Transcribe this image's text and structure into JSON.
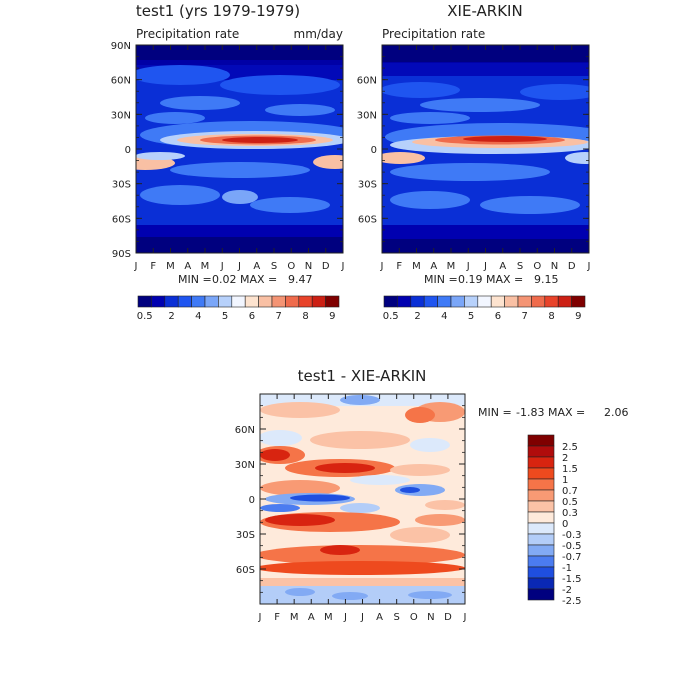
{
  "chart_data": [
    {
      "type": "heatmap",
      "title": "test1 (yrs 1979-1979)",
      "subtitle_left": "Precipitation rate",
      "subtitle_right": "mm/day",
      "x_ticks": [
        "J",
        "F",
        "M",
        "A",
        "M",
        "J",
        "J",
        "A",
        "S",
        "O",
        "N",
        "D",
        "J"
      ],
      "y_ticks": [
        "90N",
        "60N",
        "30N",
        "0",
        "30S",
        "60S",
        "90S"
      ],
      "stats": {
        "min_label": "MIN =",
        "min": "0.02",
        "max_label": "MAX =",
        "max": "9.47"
      },
      "colorbar_labels": [
        "0.5",
        "2",
        "4",
        "5",
        "6",
        "7",
        "8",
        "9"
      ]
    },
    {
      "type": "heatmap",
      "title": "XIE-ARKIN",
      "subtitle_left": "Precipitation rate",
      "x_ticks": [
        "J",
        "F",
        "M",
        "A",
        "M",
        "J",
        "J",
        "A",
        "S",
        "O",
        "N",
        "D",
        "J"
      ],
      "y_ticks": [
        "60N",
        "30N",
        "0",
        "30S",
        "60S"
      ],
      "stats": {
        "min_label": "MIN =",
        "min": "0.19",
        "max_label": "MAX =",
        "max": "9.15"
      },
      "colorbar_labels": [
        "0.5",
        "2",
        "4",
        "5",
        "6",
        "7",
        "8",
        "9"
      ]
    },
    {
      "type": "heatmap",
      "title": "test1 - XIE-ARKIN",
      "x_ticks": [
        "J",
        "F",
        "M",
        "A",
        "M",
        "J",
        "J",
        "A",
        "S",
        "O",
        "N",
        "D",
        "J"
      ],
      "y_ticks": [
        "60N",
        "30N",
        "0",
        "30S",
        "60S"
      ],
      "stats": {
        "min_label": "MIN =",
        "min": "-1.83",
        "max_label": "MAX =",
        "max": "2.06"
      },
      "colorbar_labels": [
        "2.5",
        "2",
        "1.5",
        "1",
        "0.7",
        "0.5",
        "0.3",
        "0",
        "-0.3",
        "-0.5",
        "-0.7",
        "-1",
        "-1.5",
        "-2",
        "-2.5"
      ]
    }
  ],
  "colors": {
    "precip_scale": [
      "#00007f",
      "#0000b0",
      "#0a2fd6",
      "#1f55f0",
      "#3f7af6",
      "#7aa6f8",
      "#b7d1fb",
      "#f2f6ff",
      "#fde3cf",
      "#f9c0a4",
      "#f49474",
      "#ef6b4c",
      "#e8432a",
      "#cc2014",
      "#7f0000"
    ],
    "diff_scale": [
      "#7f0000",
      "#b00c0c",
      "#d82410",
      "#ee4a1e",
      "#f57448",
      "#f89a74",
      "#fbc2a6",
      "#feeadb",
      "#dce9fb",
      "#b3cdf8",
      "#82aaf4",
      "#4b7cf0",
      "#1f4fe0",
      "#0a28b4",
      "#00007f"
    ]
  }
}
